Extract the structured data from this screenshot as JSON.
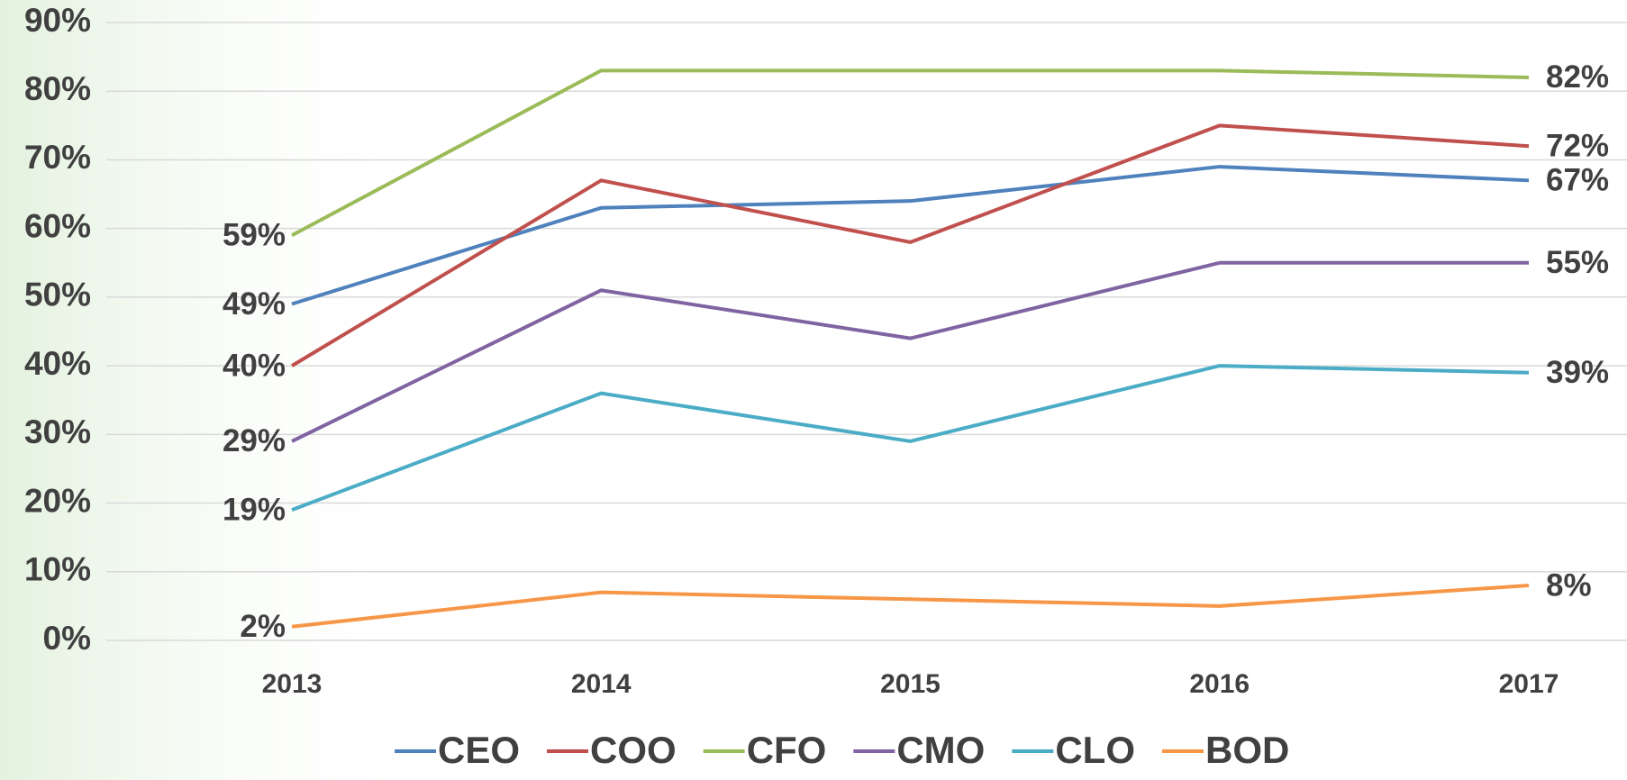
{
  "chart_data": {
    "type": "line",
    "categories": [
      "2013",
      "2014",
      "2015",
      "2016",
      "2017"
    ],
    "series": [
      {
        "name": "CEO",
        "color": "#4f81bd",
        "values": [
          49,
          63,
          64,
          69,
          67
        ],
        "value_labels": [
          "49%",
          null,
          null,
          null,
          "67%"
        ]
      },
      {
        "name": "COO",
        "color": "#c0504d",
        "values": [
          40,
          67,
          58,
          75,
          72
        ],
        "value_labels": [
          "40%",
          null,
          null,
          null,
          "72%"
        ]
      },
      {
        "name": "CFO",
        "color": "#9bbb59",
        "values": [
          59,
          83,
          83,
          83,
          82
        ],
        "value_labels": [
          "59%",
          null,
          null,
          null,
          "82%"
        ]
      },
      {
        "name": "CMO",
        "color": "#8064a2",
        "values": [
          29,
          51,
          44,
          55,
          55
        ],
        "value_labels": [
          "29%",
          null,
          null,
          null,
          "55%"
        ]
      },
      {
        "name": "CLO",
        "color": "#4bacc6",
        "values": [
          19,
          36,
          29,
          40,
          39
        ],
        "value_labels": [
          "19%",
          null,
          null,
          null,
          "39%"
        ]
      },
      {
        "name": "BOD",
        "color": "#f79646",
        "values": [
          2,
          7,
          6,
          5,
          8
        ],
        "value_labels": [
          "2%",
          null,
          null,
          null,
          "8%"
        ]
      }
    ],
    "ylim": [
      0,
      90
    ],
    "yticks": [
      {
        "value": 0,
        "label": "0%"
      },
      {
        "value": 10,
        "label": "10%"
      },
      {
        "value": 20,
        "label": "20%"
      },
      {
        "value": 30,
        "label": "30%"
      },
      {
        "value": 40,
        "label": "40%"
      },
      {
        "value": 50,
        "label": "50%"
      },
      {
        "value": 60,
        "label": "60%"
      },
      {
        "value": 70,
        "label": "70%"
      },
      {
        "value": 80,
        "label": "80%"
      },
      {
        "value": 90,
        "label": "90%"
      }
    ],
    "grid": true,
    "legend": "bottom"
  }
}
